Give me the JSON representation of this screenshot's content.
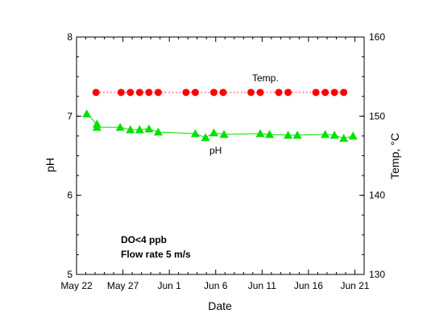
{
  "chart_data": {
    "type": "scatter",
    "xlabel": "Date",
    "ylabel_left": "pH",
    "ylabel_right": "Temp, °C",
    "x_ticks": [
      "May 22",
      "May 27",
      "Jun 1",
      "Jun 6",
      "Jun 11",
      "Jun 16",
      "Jun 21"
    ],
    "x_tick_days": [
      22,
      27,
      32,
      37,
      42,
      47,
      52
    ],
    "xlim_days": [
      22,
      53
    ],
    "ylim_left": [
      5,
      8
    ],
    "y_ticks_left": [
      "5",
      "6",
      "7",
      "8"
    ],
    "ylim_right": [
      130,
      160
    ],
    "y_ticks_right": [
      "130",
      "140",
      "150",
      "160"
    ],
    "series": [
      {
        "name": "pH",
        "axis": "left",
        "color": "#00e000",
        "marker": "triangle",
        "line": "solid",
        "x": [
          23.1,
          24.2,
          24.2,
          26.7,
          27.8,
          28.8,
          29.8,
          30.8,
          34.8,
          35.9,
          36.8,
          37.9,
          41.8,
          42.8,
          44.8,
          45.8,
          48.8,
          49.8,
          50.8,
          51.8
        ],
        "y": [
          7.03,
          6.9,
          6.86,
          6.86,
          6.83,
          6.83,
          6.84,
          6.8,
          6.78,
          6.73,
          6.79,
          6.77,
          6.78,
          6.77,
          6.76,
          6.76,
          6.77,
          6.76,
          6.72,
          6.75
        ]
      },
      {
        "name": "Temp.",
        "axis": "right",
        "color": "#ff0000",
        "marker": "circle",
        "line": "dotted",
        "x": [
          24.1,
          26.8,
          27.8,
          28.8,
          29.8,
          30.8,
          33.8,
          34.8,
          36.8,
          37.8,
          40.8,
          41.8,
          43.8,
          44.8,
          47.8,
          48.8,
          49.8,
          50.8
        ],
        "y": [
          153,
          153,
          153,
          153,
          153,
          153,
          153,
          153,
          153,
          153,
          153,
          153,
          153,
          153,
          153,
          153,
          153,
          153
        ]
      }
    ],
    "annotations": {
      "temp_label": "Temp.",
      "ph_label": "pH",
      "note_line1": "DO<4 ppb",
      "note_line2": "Flow rate 5 m/s"
    },
    "grid": false,
    "legend": "none"
  }
}
